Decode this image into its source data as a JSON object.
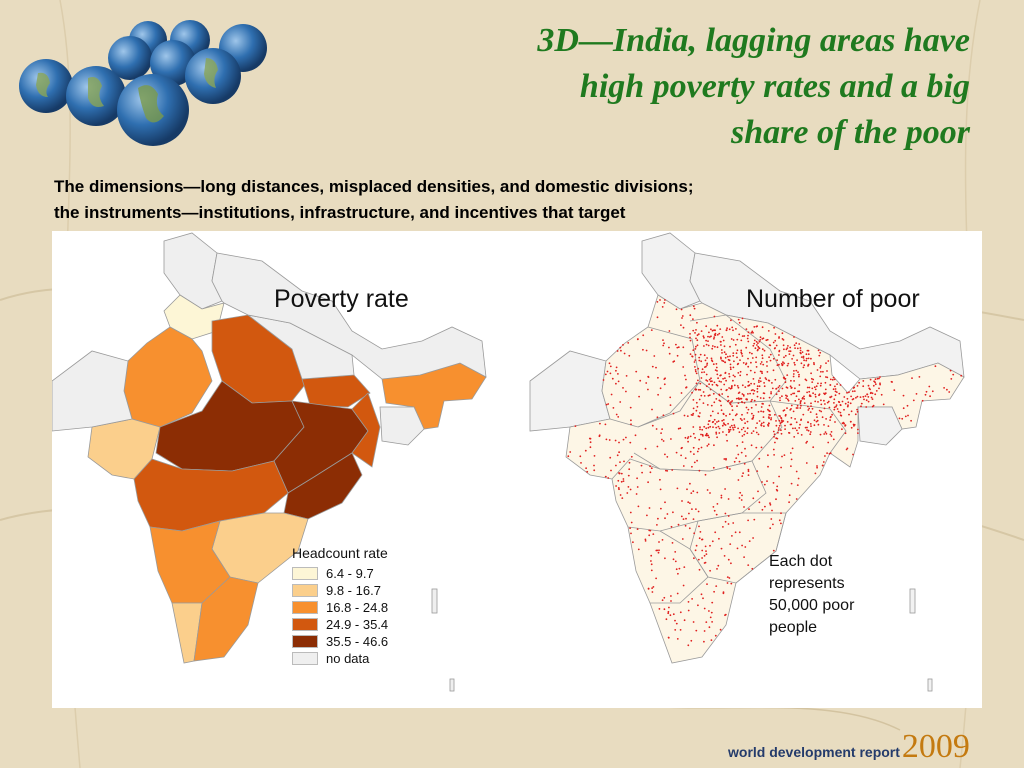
{
  "slide": {
    "title_lines": [
      "3D—India, lagging areas have",
      "high poverty rates and a big",
      "share of  the poor"
    ],
    "subtitle_lines": [
      "The dimensions—long distances, misplaced densities, and domestic divisions;",
      "the instruments—institutions, infrastructure, and incentives that target"
    ]
  },
  "left_map": {
    "title": "Poverty rate",
    "legend": {
      "title": "Headcount rate",
      "items": [
        {
          "label": "6.4 - 9.7",
          "color": "#fdf6d6"
        },
        {
          "label": "9.8 - 16.7",
          "color": "#fbcf8c"
        },
        {
          "label": "16.8 - 24.8",
          "color": "#f7902f"
        },
        {
          "label": "24.9 - 35.4",
          "color": "#d2580f"
        },
        {
          "label": "35.5 - 46.6",
          "color": "#8c2d04"
        },
        {
          "label": "no data",
          "color": "#efefef"
        }
      ]
    }
  },
  "right_map": {
    "title": "Number of poor",
    "note_lines": [
      "Each dot",
      "represents",
      "50,000 poor",
      "people"
    ],
    "dot_color": "#e0201f",
    "fill_color": "#fdf6e6"
  },
  "footer": {
    "label": "world development report",
    "year": "2009"
  },
  "colors": {
    "title": "#1f7a1f",
    "background": "#e8dcc0",
    "footer_blue": "#243b6b",
    "footer_orange": "#c47a10"
  }
}
